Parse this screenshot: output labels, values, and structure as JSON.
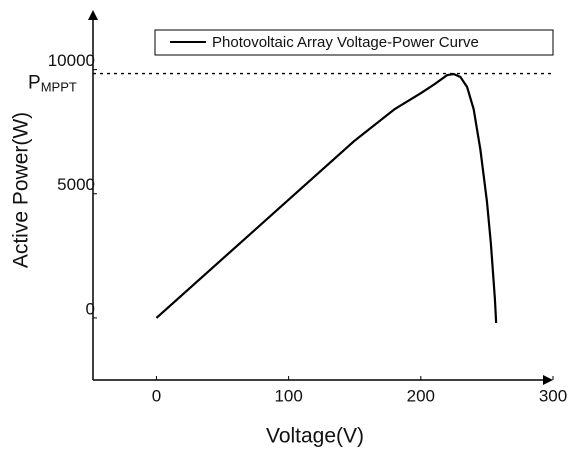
{
  "chart_data": {
    "type": "line",
    "x_label": "Voltage(V)",
    "y_label": "Active Power(W)",
    "x": [
      0,
      50,
      100,
      150,
      180,
      200,
      210,
      220,
      225,
      230,
      235,
      240,
      245,
      250,
      253,
      256,
      257
    ],
    "series": [
      {
        "name": "Photovoltaic Array Voltage-Power Curve",
        "color": "#000000",
        "values": [
          0,
          2380,
          4760,
          7140,
          8400,
          9050,
          9400,
          9780,
          9820,
          9700,
          9300,
          8400,
          6800,
          4700,
          3000,
          800,
          -200
        ]
      }
    ],
    "xlim": [
      -48,
      300
    ],
    "xticks": [
      0,
      100,
      200,
      300
    ],
    "ylim": [
      -2500,
      12400
    ],
    "yticks": [
      0,
      5000,
      10000
    ],
    "annotation": {
      "text": "P",
      "subscript": "MPPT",
      "value": 9840
    },
    "grid": false,
    "legend": "top-right"
  }
}
